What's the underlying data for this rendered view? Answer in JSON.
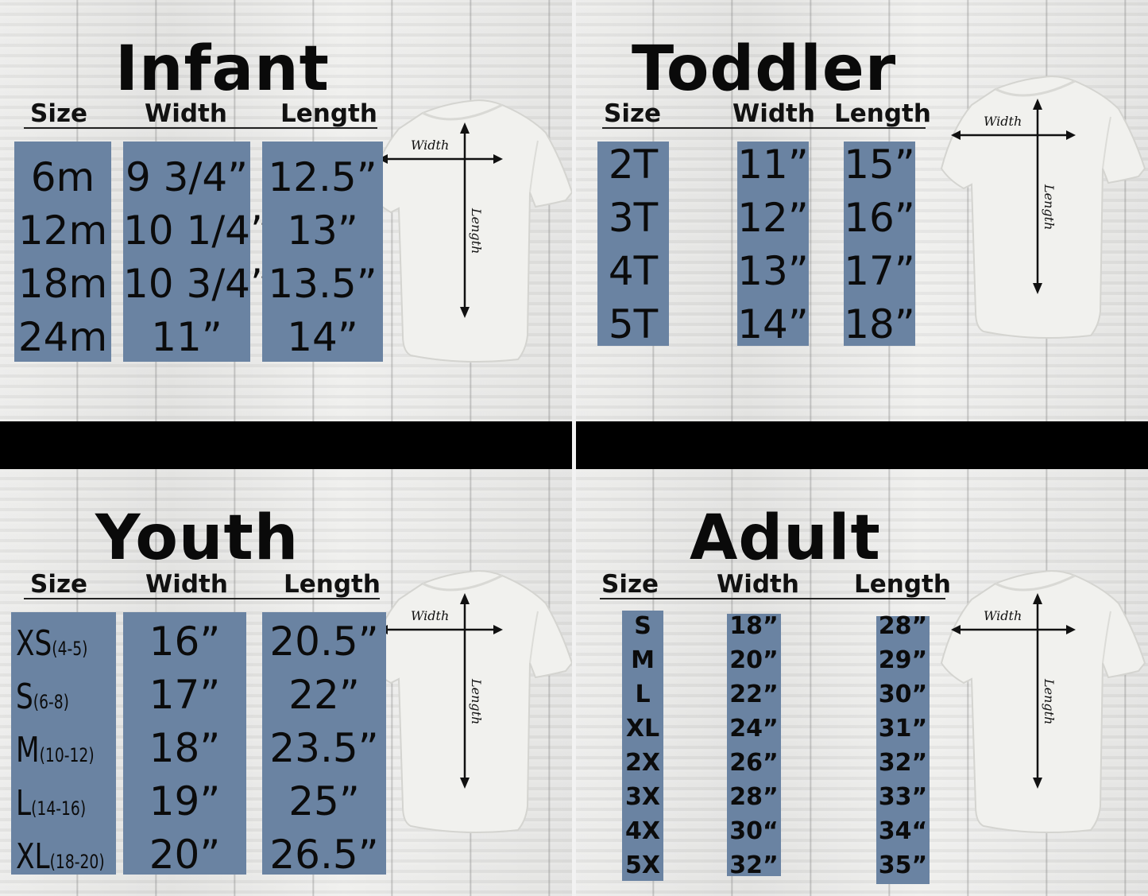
{
  "colors": {
    "box": "#6a83a2",
    "band": "#000000",
    "text": "#0b0b0b"
  },
  "shirt_labels": {
    "width": "Width",
    "length": "Length"
  },
  "panels": [
    {
      "id": "infant",
      "title": "Infant",
      "headers": [
        "Size",
        "Width",
        "Length"
      ],
      "sizes": [
        "6m",
        "12m",
        "18m",
        "24m"
      ],
      "widths": [
        "9 3/4”",
        "10 1/4”",
        "10 3/4”",
        "11”"
      ],
      "lengths": [
        "12.5”",
        "13”",
        "13.5”",
        "14”"
      ]
    },
    {
      "id": "toddler",
      "title": "Toddler",
      "headers": [
        "Size",
        "Width",
        "Length"
      ],
      "sizes": [
        "2T",
        "3T",
        "4T",
        "5T"
      ],
      "widths": [
        "11”",
        "12”",
        "13”",
        "14”"
      ],
      "lengths": [
        "15”",
        "16”",
        "17”",
        "18”"
      ]
    },
    {
      "id": "youth",
      "title": "Youth",
      "headers": [
        "Size",
        "Width",
        "Length"
      ],
      "sizes": [
        "XS",
        "S",
        "M",
        "L",
        "XL"
      ],
      "size_ranges": [
        "(4-5)",
        "(6-8)",
        "(10-12)",
        "(14-16)",
        "(18-20)"
      ],
      "widths": [
        "16”",
        "17”",
        "18”",
        "19”",
        "20”"
      ],
      "lengths": [
        "20.5”",
        "22”",
        "23.5”",
        "25”",
        "26.5”"
      ]
    },
    {
      "id": "adult",
      "title": "Adult",
      "headers": [
        "Size",
        "Width",
        "Length"
      ],
      "sizes": [
        "S",
        "M",
        "L",
        "XL",
        "2X",
        "3X",
        "4X",
        "5X"
      ],
      "widths": [
        "18”",
        "20”",
        "22”",
        "24”",
        "26”",
        "28”",
        "30“",
        "32”"
      ],
      "lengths": [
        "28”",
        "29”",
        "30”",
        "31”",
        "32”",
        "33”",
        "34“",
        "35”"
      ]
    }
  ]
}
